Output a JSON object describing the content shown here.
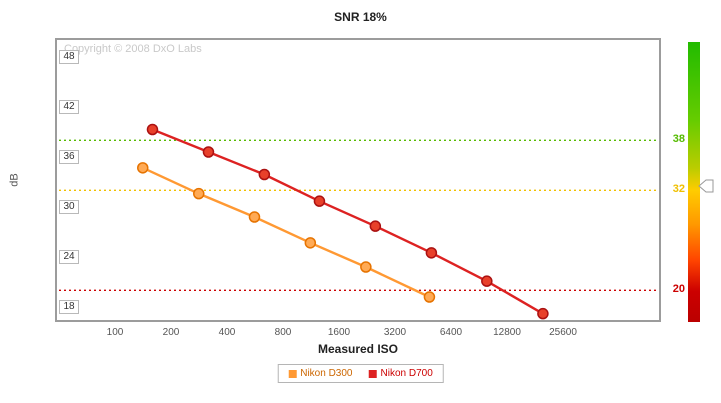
{
  "page": {
    "title": "SNR 18%",
    "copyright": "Copyright © 2008 DxO Labs",
    "x_axis_label": "Measured ISO",
    "y_axis_label": "dB"
  },
  "chart_data": {
    "type": "line",
    "title": "SNR 18%",
    "xlabel": "Measured ISO",
    "ylabel": "dB",
    "x_scale": "log2",
    "x_ticks": [
      100,
      200,
      400,
      800,
      1600,
      3200,
      6400,
      12800,
      25600
    ],
    "y_ticks": [
      48,
      42,
      36,
      30,
      24,
      18
    ],
    "ylim": [
      16,
      50
    ],
    "xlim": [
      50,
      80000
    ],
    "grid": "threshold-lines-only",
    "legend_position": "bottom-center",
    "thresholds": [
      {
        "value": 38,
        "color": "#55bb00",
        "style": "dotted"
      },
      {
        "value": 32,
        "color": "#f0c000",
        "style": "dotted"
      },
      {
        "value": 20,
        "color": "#cc0000",
        "style": "dotted"
      }
    ],
    "series": [
      {
        "name": "Nikon D300",
        "color": "#ff9933",
        "marker_fill": "#ffaa55",
        "marker_stroke": "#e67300",
        "label_color": "#cc6600",
        "points": [
          [
            141,
            34.7
          ],
          [
            282,
            31.6
          ],
          [
            562,
            28.8
          ],
          [
            1122,
            25.7
          ],
          [
            2231,
            22.8
          ],
          [
            4900,
            19.2
          ]
        ]
      },
      {
        "name": "Nikon D700",
        "color": "#dd2222",
        "marker_fill": "#e8402a",
        "marker_stroke": "#aa1111",
        "label_color": "#cc0000",
        "points": [
          [
            159,
            39.3
          ],
          [
            318,
            36.6
          ],
          [
            635,
            33.9
          ],
          [
            1256,
            30.7
          ],
          [
            2509,
            27.7
          ],
          [
            5021,
            24.5
          ],
          [
            9972,
            21.1
          ],
          [
            19963,
            17.2
          ]
        ]
      }
    ],
    "gradient_bar": {
      "stops": [
        "#22bb00 0%",
        "#66cc00 28%",
        "#bbcc00 45%",
        "#ffcc00 53%",
        "#ff9900 65%",
        "#ff4400 78%",
        "#cc0000 89%",
        "#bb0000 100%"
      ],
      "pointer_value": 32.5
    }
  }
}
